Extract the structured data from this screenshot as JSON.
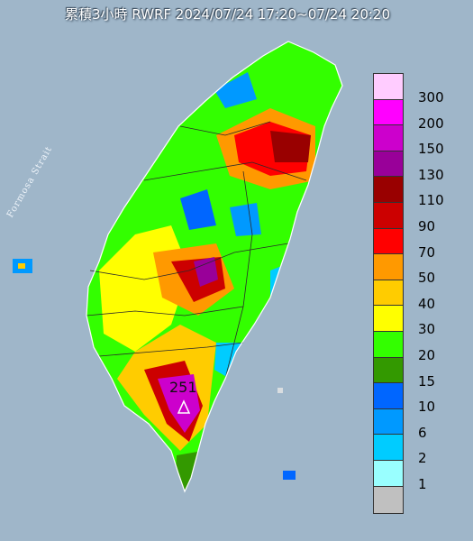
{
  "title": "累積3小時 RWRF 2024/07/24 17:20~07/24 20:20",
  "sea_label": "Formosa Strait",
  "max_marker": {
    "value": "251",
    "symbol": "triangle"
  },
  "legend": {
    "title": "",
    "levels": [
      {
        "label": "300",
        "color": "#ffccff"
      },
      {
        "label": "200",
        "color": "#ff00ff"
      },
      {
        "label": "150",
        "color": "#cc00cc"
      },
      {
        "label": "130",
        "color": "#990099"
      },
      {
        "label": "110",
        "color": "#990000"
      },
      {
        "label": "90",
        "color": "#cc0000"
      },
      {
        "label": "70",
        "color": "#ff0000"
      },
      {
        "label": "50",
        "color": "#ff9900"
      },
      {
        "label": "40",
        "color": "#ffcc00"
      },
      {
        "label": "30",
        "color": "#ffff00"
      },
      {
        "label": "20",
        "color": "#33ff00"
      },
      {
        "label": "15",
        "color": "#339900"
      },
      {
        "label": "10",
        "color": "#0066ff"
      },
      {
        "label": "6",
        "color": "#0099ff"
      },
      {
        "label": "2",
        "color": "#00ccff"
      },
      {
        "label": "1",
        "color": "#99ffff"
      },
      {
        "label": "",
        "color": "#c0c0c0"
      }
    ]
  },
  "colors": {
    "sea": "#9fb6c9",
    "land_dry": "#d9dde0"
  }
}
